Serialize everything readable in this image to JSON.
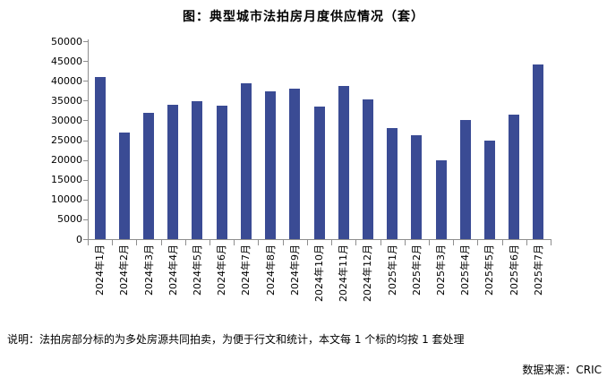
{
  "chart_data": {
    "type": "bar",
    "title": "图：典型城市法拍房月度供应情况（套）",
    "categories": [
      "2024年1月",
      "2024年2月",
      "2024年3月",
      "2024年4月",
      "2024年5月",
      "2024年6月",
      "2024年7月",
      "2024年8月",
      "2024年9月",
      "2024年10月",
      "2024年11月",
      "2024年12月",
      "2025年1月",
      "2025年2月",
      "2025年3月",
      "2025年4月",
      "2025年5月",
      "2025年6月",
      "2025年7月"
    ],
    "values": [
      41000,
      26900,
      31900,
      34000,
      34900,
      33600,
      39400,
      37400,
      38000,
      33400,
      38700,
      35400,
      28100,
      26200,
      19800,
      30100,
      24800,
      31500,
      44100
    ],
    "xlabel": "",
    "ylabel": "",
    "ylim": [
      0,
      50000
    ],
    "ytick_step": 5000,
    "ytick_labels": [
      "0",
      "5000",
      "10000",
      "15000",
      "20000",
      "25000",
      "30000",
      "35000",
      "40000",
      "45000",
      "50000"
    ],
    "grid": false,
    "legend": "none",
    "bar_color": "#3A4B94",
    "axis_color": "#8E8E8E"
  },
  "footnote": "说明：法拍房部分标的为多处房源共同拍卖，为便于行文和统计，本文每 1 个标的均按 1 套处理",
  "source": "数据来源：CRIC"
}
